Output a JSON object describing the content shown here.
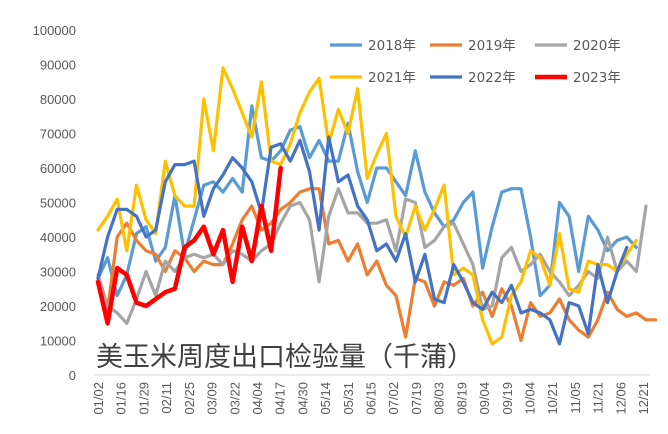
{
  "chart_data": {
    "type": "line",
    "annotation": "美玉米周度出口检验量（千蒲）",
    "ylim": [
      0,
      100000
    ],
    "y_ticks": [
      0,
      10000,
      20000,
      30000,
      40000,
      50000,
      60000,
      70000,
      80000,
      90000,
      100000
    ],
    "x_tick_labels": [
      "01/02",
      "01/16",
      "01/29",
      "02/11",
      "02/25",
      "03/09",
      "03/22",
      "04/04",
      "04/17",
      "04/30",
      "05/14",
      "05/31",
      "06/15",
      "07/02",
      "07/19",
      "08/03",
      "08/19",
      "09/04",
      "09/19",
      "10/04",
      "10/21",
      "11/05",
      "11/21",
      "12/06",
      "12/21"
    ],
    "legend_position": "top",
    "gridlines": false,
    "colors": {
      "2018年": "#5B9BD5",
      "2019年": "#ED7D31",
      "2020年": "#A5A5A5",
      "2021年": "#FFC000",
      "2022年": "#4472C4",
      "2023年": "#FF0000"
    },
    "series": [
      {
        "name": "2018年",
        "values": [
          28000,
          34000,
          23000,
          29000,
          41000,
          43000,
          33000,
          37000,
          52000,
          35000,
          45000,
          55000,
          56000,
          53000,
          57000,
          53000,
          78000,
          63000,
          62000,
          65000,
          71000,
          72000,
          63000,
          68000,
          62000,
          62000,
          73000,
          59000,
          50000,
          60000,
          60000,
          56000,
          52000,
          65000,
          53000,
          47000,
          43000,
          45000,
          50000,
          53000,
          31000,
          43000,
          53000,
          54000,
          54000,
          40000,
          23000,
          26000,
          50000,
          46000,
          30000,
          46000,
          42000,
          36000,
          39000,
          40000,
          37000
        ]
      },
      {
        "name": "2019年",
        "values": [
          27000,
          19000,
          40000,
          44000,
          39000,
          36000,
          35000,
          30000,
          36000,
          34000,
          30000,
          33000,
          32000,
          32000,
          38000,
          45000,
          49000,
          42000,
          44000,
          48000,
          50000,
          53000,
          54000,
          54000,
          38000,
          39000,
          33000,
          38000,
          29000,
          33000,
          26000,
          23000,
          11000,
          28000,
          27000,
          20000,
          27000,
          26000,
          28000,
          20000,
          24000,
          17000,
          25000,
          20000,
          10000,
          21000,
          17000,
          18000,
          22000,
          16000,
          13000,
          11000,
          16000,
          24000,
          19000,
          17000,
          18000,
          16000,
          16000
        ]
      },
      {
        "name": "2020年",
        "values": [
          29000,
          20000,
          18000,
          15000,
          22000,
          30000,
          23000,
          33000,
          30000,
          34000,
          35000,
          34000,
          35000,
          32000,
          36000,
          35000,
          33000,
          36000,
          38000,
          44000,
          49000,
          50000,
          45000,
          27000,
          46000,
          54000,
          47000,
          47000,
          44000,
          44000,
          45000,
          36000,
          51000,
          50000,
          37000,
          39000,
          43000,
          44000,
          38000,
          32000,
          19000,
          20000,
          34000,
          37000,
          30000,
          32000,
          35000,
          30000,
          27000,
          23000,
          26000,
          30000,
          28000,
          40000,
          30000,
          33000,
          30000,
          49000
        ]
      },
      {
        "name": "2021年",
        "values": [
          42000,
          46000,
          51000,
          36000,
          55000,
          45000,
          41000,
          62000,
          52000,
          49000,
          49000,
          80000,
          65000,
          89000,
          83000,
          76000,
          69000,
          85000,
          62000,
          61000,
          67000,
          76000,
          82000,
          86000,
          67000,
          77000,
          70000,
          83000,
          57000,
          64000,
          70000,
          46000,
          40000,
          49000,
          42000,
          48000,
          55000,
          29000,
          31000,
          29000,
          16000,
          9000,
          11000,
          23000,
          27000,
          36000,
          34000,
          26000,
          41000,
          25000,
          24000,
          33000,
          32000,
          32000,
          30000,
          35000,
          39000
        ]
      },
      {
        "name": "2022年",
        "values": [
          28000,
          40000,
          48000,
          48000,
          46000,
          40000,
          42000,
          56000,
          61000,
          61000,
          62000,
          46000,
          54000,
          58000,
          63000,
          60000,
          56000,
          47000,
          66000,
          67000,
          62000,
          68000,
          59000,
          42000,
          69000,
          56000,
          58000,
          49000,
          45000,
          36000,
          38000,
          33000,
          41000,
          27000,
          35000,
          22000,
          21000,
          32000,
          27000,
          21000,
          19000,
          24000,
          21000,
          26000,
          18000,
          19000,
          18000,
          16000,
          9000,
          21000,
          20000,
          12000,
          32000,
          21000,
          30000,
          37000
        ]
      },
      {
        "name": "2023年",
        "values": [
          27000,
          15000,
          31000,
          29000,
          21000,
          20000,
          22000,
          24000,
          25000,
          37000,
          39000,
          43000,
          35000,
          42000,
          27000,
          43000,
          33000,
          49000,
          36000,
          60000
        ]
      }
    ]
  }
}
